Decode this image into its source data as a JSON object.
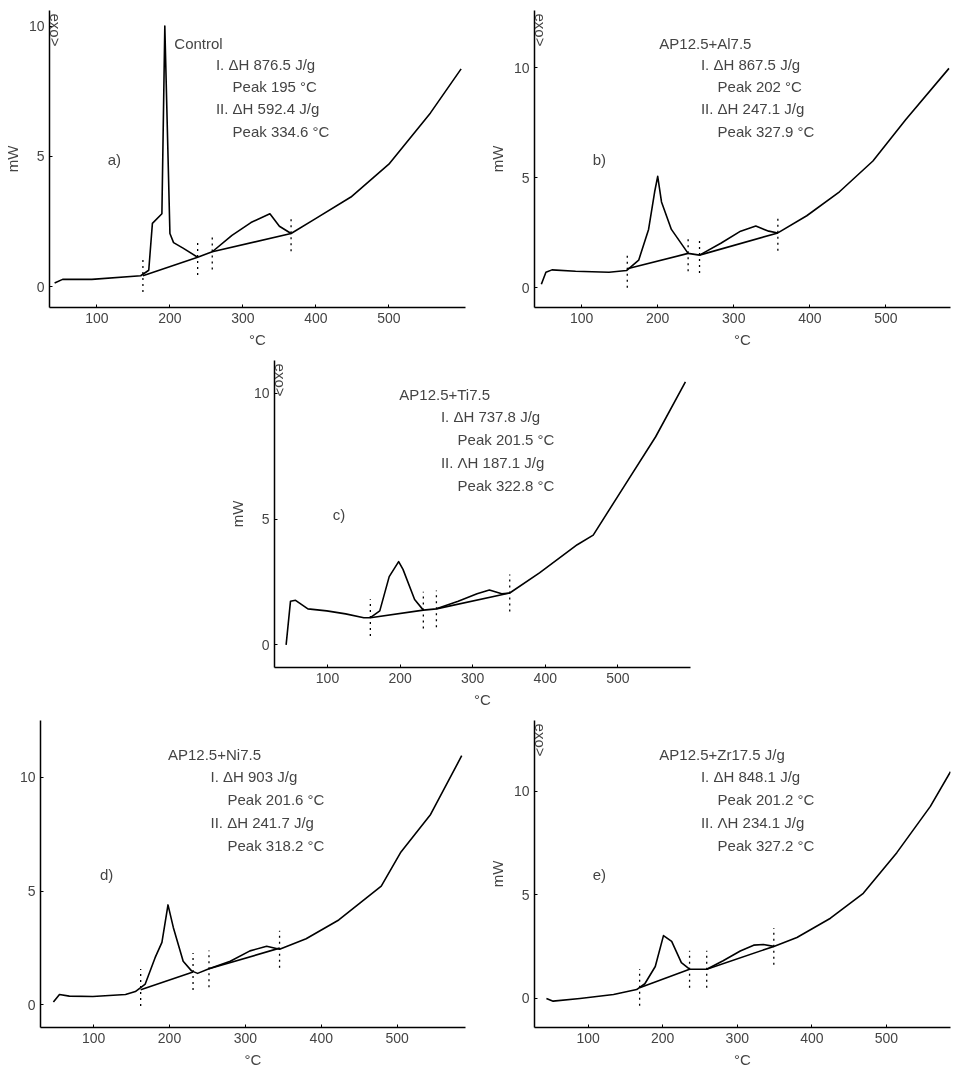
{
  "chart_data": [
    {
      "type": "line",
      "xlabel": "°C",
      "ylabel": "mW",
      "xlim": [
        35,
        605
      ],
      "ylim": [
        -0.8,
        10.6
      ],
      "xticks": [
        100,
        200,
        300,
        400,
        500
      ],
      "yticks": [
        0,
        5,
        10
      ],
      "grid": false,
      "line_style": "solid",
      "marker": "none",
      "series": [
        {
          "color": "#000000",
          "x": [
            42,
            53,
            93,
            160,
            171,
            176,
            189,
            193,
            200,
            205,
            218,
            238,
            258,
            285,
            311,
            337,
            350,
            366,
            399,
            448,
            500,
            557,
            599
          ],
          "values": [
            0.14,
            0.28,
            0.28,
            0.42,
            0.63,
            2.43,
            2.8,
            10.0,
            2.04,
            1.69,
            1.48,
            1.13,
            1.34,
            1.97,
            2.46,
            2.8,
            2.32,
            2.04,
            2.6,
            3.44,
            4.7,
            6.67,
            8.36
          ]
        },
        {
          "color": "#000000",
          "x": [
            163,
            238
          ],
          "values": [
            0.42,
            1.13
          ]
        },
        {
          "color": "#000000",
          "x": [
            258,
            366
          ],
          "values": [
            1.34,
            2.04
          ]
        }
      ],
      "ref_lines": [
        {
          "axis": "x",
          "value": 163,
          "line_style": "dotted"
        },
        {
          "axis": "x",
          "value": 238,
          "line_style": "dotted"
        },
        {
          "axis": "x",
          "value": 258,
          "line_style": "dotted"
        },
        {
          "axis": "x",
          "value": 366,
          "line_style": "dotted"
        }
      ],
      "annotations": [
        "Control",
        "I. ΔH 876.5 J/g",
        "Peak 195 °C",
        "II. ΔH 592.4 J/g",
        "Peak 334.6 °C",
        "a)",
        "exo>"
      ]
    },
    {
      "type": "line",
      "xlabel": "°C",
      "ylabel": "mW",
      "xlim": [
        38,
        585
      ],
      "ylim": [
        -0.9,
        12.6
      ],
      "xticks": [
        100,
        200,
        300,
        400,
        500
      ],
      "yticks": [
        0,
        5,
        10
      ],
      "grid": false,
      "line_style": "solid",
      "marker": "none",
      "series": [
        {
          "color": "#000000",
          "x": [
            47,
            53,
            61,
            92,
            136,
            159,
            175,
            188,
            196,
            200,
            205,
            218,
            240,
            255,
            283,
            309,
            329,
            346,
            358,
            396,
            439,
            483,
            526,
            583
          ],
          "values": [
            0.16,
            0.7,
            0.81,
            0.75,
            0.7,
            0.78,
            1.25,
            2.65,
            4.36,
            5.06,
            3.9,
            2.65,
            1.56,
            1.48,
            2.02,
            2.57,
            2.8,
            2.57,
            2.49,
            3.27,
            4.36,
            5.76,
            7.63,
            9.97
          ]
        },
        {
          "color": "#000000",
          "x": [
            160,
            240
          ],
          "values": [
            0.86,
            1.56
          ]
        },
        {
          "color": "#000000",
          "x": [
            255,
            358
          ],
          "values": [
            1.48,
            2.49
          ]
        }
      ],
      "ref_lines": [
        {
          "axis": "x",
          "value": 160,
          "line_style": "dotted"
        },
        {
          "axis": "x",
          "value": 240,
          "line_style": "dotted"
        },
        {
          "axis": "x",
          "value": 255,
          "line_style": "dotted"
        },
        {
          "axis": "x",
          "value": 358,
          "line_style": "dotted"
        }
      ],
      "annotations": [
        "AP12.5+Al7.5",
        "I. ΔH 867.5 J/g",
        "Peak 202 °C",
        "II. ΔH 247.1 J/g",
        "Peak 327.9 °C",
        "b)",
        "exo>"
      ]
    },
    {
      "type": "line",
      "xlabel": "°C",
      "ylabel": "mW",
      "xlim": [
        27,
        600
      ],
      "ylim": [
        -0.9,
        11.3
      ],
      "xticks": [
        100,
        200,
        300,
        400,
        500
      ],
      "yticks": [
        0,
        5,
        10
      ],
      "grid": false,
      "line_style": "solid",
      "marker": "none",
      "series": [
        {
          "color": "#000000",
          "x": [
            43,
            49,
            56,
            73,
            99,
            125,
            150,
            159,
            172,
            185,
            198,
            204,
            220,
            232,
            250,
            280,
            306,
            323,
            340,
            351,
            392,
            444,
            466,
            509,
            552,
            593
          ],
          "values": [
            0,
            1.73,
            1.77,
            1.43,
            1.35,
            1.23,
            1.08,
            1.08,
            1.35,
            2.71,
            3.31,
            3.0,
            1.8,
            1.38,
            1.43,
            1.73,
            2.03,
            2.18,
            2.03,
            2.06,
            2.86,
            3.98,
            4.36,
            6.32,
            8.27,
            10.45
          ]
        },
        {
          "color": "#000000",
          "x": [
            159,
            232
          ],
          "values": [
            1.08,
            1.38
          ]
        },
        {
          "color": "#000000",
          "x": [
            250,
            351
          ],
          "values": [
            1.43,
            2.06
          ]
        }
      ],
      "ref_lines": [
        {
          "axis": "x",
          "value": 159,
          "line_style": "dotted"
        },
        {
          "axis": "x",
          "value": 232,
          "line_style": "dotted"
        },
        {
          "axis": "x",
          "value": 250,
          "line_style": "dotted"
        },
        {
          "axis": "x",
          "value": 351,
          "line_style": "dotted"
        }
      ],
      "annotations": [
        "AP12.5+Ti7.5",
        "I. ΔH 737.8 J/g",
        "Peak 201.5 °C",
        "II. ΛH 187.1 J/g",
        "Peak 322.8 °C",
        "c)",
        "exo>"
      ]
    },
    {
      "type": "line",
      "xlabel": "°C",
      "xlim": [
        30,
        590
      ],
      "ylim": [
        -1.0,
        12.5
      ],
      "xticks": [
        100,
        200,
        300,
        400,
        500
      ],
      "yticks": [
        0,
        5,
        10
      ],
      "grid": false,
      "line_style": "solid",
      "marker": "none",
      "series": [
        {
          "color": "#000000",
          "x": [
            47,
            55,
            68,
            99,
            142,
            155,
            168,
            181,
            190,
            198,
            205,
            218,
            229,
            237,
            252,
            280,
            306,
            328,
            345,
            380,
            423,
            479,
            505,
            544,
            585
          ],
          "values": [
            0.12,
            0.45,
            0.38,
            0.36,
            0.45,
            0.58,
            0.91,
            2.07,
            2.74,
            4.39,
            3.4,
            1.91,
            1.49,
            1.38,
            1.58,
            1.91,
            2.37,
            2.57,
            2.44,
            2.9,
            3.73,
            5.22,
            6.72,
            8.37,
            10.95
          ]
        },
        {
          "color": "#000000",
          "x": [
            162,
            231
          ],
          "values": [
            0.66,
            1.44
          ]
        },
        {
          "color": "#000000",
          "x": [
            252,
            345
          ],
          "values": [
            1.58,
            2.49
          ]
        }
      ],
      "ref_lines": [
        {
          "axis": "x",
          "value": 162,
          "line_style": "dotted"
        },
        {
          "axis": "x",
          "value": 231,
          "line_style": "dotted"
        },
        {
          "axis": "x",
          "value": 252,
          "line_style": "dotted"
        },
        {
          "axis": "x",
          "value": 345,
          "line_style": "dotted"
        }
      ],
      "annotations": [
        "AP12.5+Ni7.5",
        "I. ΔH 903 J/g",
        "Peak 201.6 °C",
        "II. ΔH 241.7 J/g",
        "Peak 318.2 °C",
        "d)"
      ]
    },
    {
      "type": "line",
      "xlabel": "°C",
      "ylabel": "mW",
      "xlim": [
        28,
        586
      ],
      "ylim": [
        -1.4,
        13.4
      ],
      "xticks": [
        100,
        200,
        300,
        400,
        500
      ],
      "yticks": [
        0,
        5,
        10
      ],
      "grid": false,
      "line_style": "solid",
      "marker": "none",
      "series": [
        {
          "color": "#000000",
          "x": [
            44,
            53,
            89,
            134,
            165,
            176,
            190,
            201,
            212,
            225,
            236,
            259,
            281,
            304,
            322,
            335,
            349,
            380,
            425,
            469,
            514,
            559,
            586
          ],
          "values": [
            0,
            -0.13,
            0,
            0.19,
            0.43,
            0.71,
            1.54,
            3.03,
            2.75,
            1.73,
            1.41,
            1.41,
            1.82,
            2.29,
            2.57,
            2.6,
            2.51,
            2.94,
            3.87,
            5.07,
            7.03,
            9.26,
            10.93
          ]
        },
        {
          "color": "#000000",
          "x": [
            169,
            236
          ],
          "values": [
            0.52,
            1.41
          ]
        },
        {
          "color": "#000000",
          "x": [
            259,
            349
          ],
          "values": [
            1.41,
            2.51
          ]
        }
      ],
      "ref_lines": [
        {
          "axis": "x",
          "value": 169,
          "line_style": "dotted"
        },
        {
          "axis": "x",
          "value": 236,
          "line_style": "dotted"
        },
        {
          "axis": "x",
          "value": 259,
          "line_style": "dotted"
        },
        {
          "axis": "x",
          "value": 349,
          "line_style": "dotted"
        }
      ],
      "annotations": [
        "AP12.5+Zr17.5 J/g",
        "I. ΔH 848.1 J/g",
        "Peak 201.2 °C",
        "II. ΛH 234.1 J/g",
        "Peak 327.2 °C",
        "e)",
        "exo>"
      ]
    }
  ]
}
